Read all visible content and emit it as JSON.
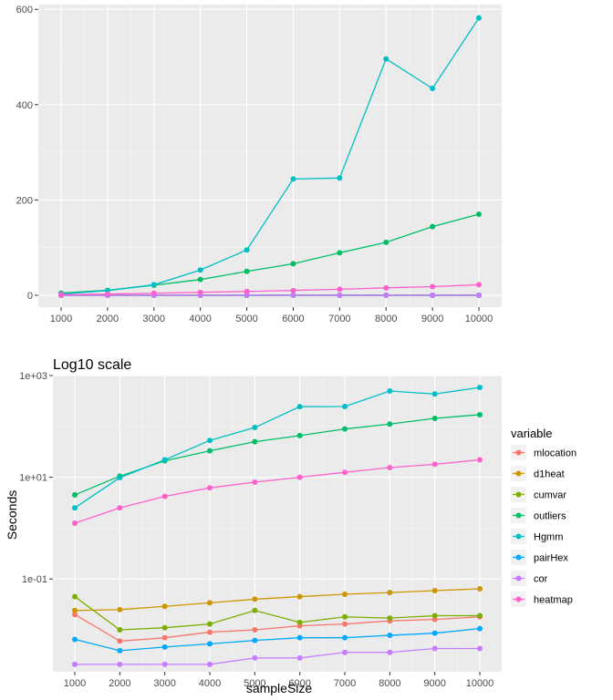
{
  "chart_data": [
    {
      "type": "line",
      "title": "",
      "xlabel": "",
      "ylabel": "",
      "x": [
        1000,
        2000,
        3000,
        4000,
        5000,
        6000,
        7000,
        8000,
        9000,
        10000
      ],
      "xticks": [
        "1000",
        "2000",
        "3000",
        "4000",
        "5000",
        "6000",
        "7000",
        "8000",
        "9000",
        "10000"
      ],
      "yticks": [
        "0",
        "200",
        "400",
        "600"
      ],
      "ytick_values": [
        0,
        200,
        400,
        600
      ],
      "ylim": [
        -25,
        610
      ],
      "grid": true,
      "series": [
        {
          "name": "mlocation",
          "color": "#F8766D",
          "values": [
            0.02,
            0.006,
            0.007,
            0.009,
            0.01,
            0.012,
            0.013,
            0.015,
            0.016,
            0.018
          ]
        },
        {
          "name": "d1heat",
          "color": "#CD9600",
          "values": [
            0.024,
            0.025,
            0.029,
            0.034,
            0.04,
            0.045,
            0.05,
            0.054,
            0.059,
            0.064
          ]
        },
        {
          "name": "cumvar",
          "color": "#7CAE00",
          "values": [
            0.045,
            0.01,
            0.011,
            0.013,
            0.024,
            0.014,
            0.018,
            0.017,
            0.019,
            0.019
          ]
        },
        {
          "name": "outliers",
          "color": "#00BE67",
          "values": [
            4.5,
            10.5,
            21,
            33,
            50,
            66,
            89,
            111,
            144,
            170
          ]
        },
        {
          "name": "Hgmm",
          "color": "#00BFC4",
          "values": [
            2.5,
            9.8,
            22,
            53,
            95,
            244,
            246,
            496,
            434,
            582
          ]
        },
        {
          "name": "pairHex",
          "color": "#00A9FF",
          "values": [
            0.0065,
            0.0039,
            0.0046,
            0.0053,
            0.0062,
            0.007,
            0.007,
            0.0078,
            0.0086,
            0.0106
          ]
        },
        {
          "name": "cor",
          "color": "#C77CFF",
          "values": [
            0.0021,
            0.0021,
            0.0021,
            0.0021,
            0.0028,
            0.0028,
            0.0036,
            0.0036,
            0.0043,
            0.0043
          ]
        },
        {
          "name": "heatmap",
          "color": "#FF61CC",
          "values": [
            1.25,
            2.5,
            4.2,
            6.2,
            8.0,
            10.0,
            12.5,
            15.5,
            18.0,
            22.0
          ]
        }
      ]
    },
    {
      "type": "line",
      "title": "Log10 scale",
      "xlabel": "sampleSize",
      "ylabel": "Seconds",
      "yscale": "log10",
      "x": [
        1000,
        2000,
        3000,
        4000,
        5000,
        6000,
        7000,
        8000,
        9000,
        10000
      ],
      "xticks": [
        "1000",
        "2000",
        "3000",
        "4000",
        "5000",
        "6000",
        "7000",
        "8000",
        "9000",
        "10000"
      ],
      "yticks": [
        "1e+03",
        "1e+01",
        "1e-01"
      ],
      "ytick_values": [
        1000,
        10,
        0.1
      ],
      "ylim": [
        0.0015,
        1000
      ],
      "grid": true,
      "legend": {
        "title": "variable",
        "placement": "right"
      },
      "series": [
        {
          "name": "mlocation",
          "color": "#F8766D",
          "values": [
            0.02,
            0.006,
            0.007,
            0.009,
            0.01,
            0.012,
            0.013,
            0.015,
            0.016,
            0.018
          ]
        },
        {
          "name": "d1heat",
          "color": "#CD9600",
          "values": [
            0.024,
            0.025,
            0.029,
            0.034,
            0.04,
            0.045,
            0.05,
            0.054,
            0.059,
            0.064
          ]
        },
        {
          "name": "cumvar",
          "color": "#7CAE00",
          "values": [
            0.045,
            0.01,
            0.011,
            0.013,
            0.024,
            0.014,
            0.018,
            0.017,
            0.019,
            0.019
          ]
        },
        {
          "name": "outliers",
          "color": "#00BE67",
          "values": [
            4.5,
            10.5,
            21,
            33,
            50,
            66,
            89,
            111,
            144,
            170
          ]
        },
        {
          "name": "Hgmm",
          "color": "#00BFC4",
          "values": [
            2.5,
            9.8,
            22,
            53,
            95,
            244,
            246,
            496,
            434,
            582
          ]
        },
        {
          "name": "pairHex",
          "color": "#00A9FF",
          "values": [
            0.0065,
            0.0039,
            0.0046,
            0.0053,
            0.0062,
            0.007,
            0.007,
            0.0078,
            0.0086,
            0.0106
          ]
        },
        {
          "name": "cor",
          "color": "#C77CFF",
          "values": [
            0.0021,
            0.0021,
            0.0021,
            0.0021,
            0.0028,
            0.0028,
            0.0036,
            0.0036,
            0.0043,
            0.0043
          ]
        },
        {
          "name": "heatmap",
          "color": "#FF61CC",
          "values": [
            1.25,
            2.5,
            4.2,
            6.2,
            8.0,
            10.0,
            12.5,
            15.5,
            18.0,
            22.0
          ]
        }
      ]
    }
  ]
}
